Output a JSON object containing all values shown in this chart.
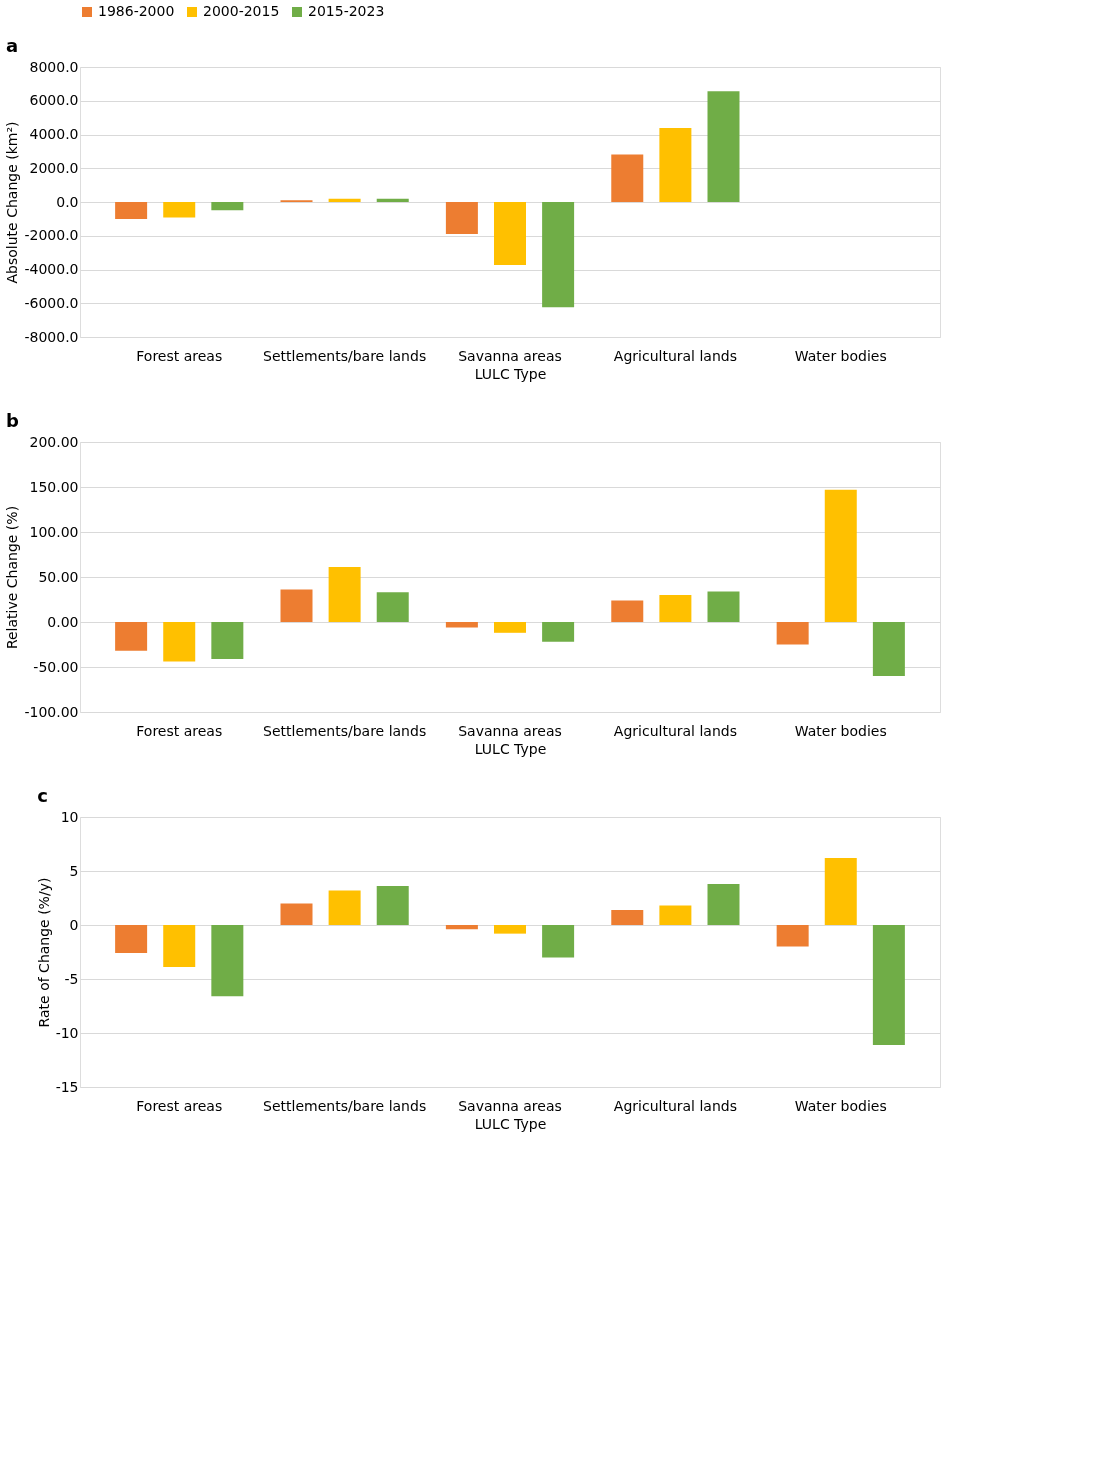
{
  "chart_data": [
    {
      "type": "bar",
      "title": "a",
      "xlabel": "LULC Type",
      "ylabel": "Absolute Change (km²)",
      "categories": [
        "Forest areas",
        "Settlements/bare lands",
        "Savanna areas",
        "Agricultural lands",
        "Water bodies"
      ],
      "series": [
        {
          "name": "1986-2000",
          "color": "#ed7d31",
          "values": [
            -1000,
            100,
            -1900,
            2820,
            0
          ]
        },
        {
          "name": "2000-2015",
          "color": "#ffc000",
          "values": [
            -920,
            200,
            -3740,
            4390,
            0
          ]
        },
        {
          "name": "2015-2023",
          "color": "#70ad47",
          "values": [
            -490,
            200,
            -6230,
            6560,
            0
          ]
        }
      ],
      "ylim": [
        -8000,
        8000
      ],
      "yticks": [
        {
          "value": -8000,
          "label": "-8000.0"
        },
        {
          "value": -6000,
          "label": "-6000.0"
        },
        {
          "value": -4000,
          "label": "-4000.0"
        },
        {
          "value": -2000,
          "label": "-2000.0"
        },
        {
          "value": 0,
          "label": "0.0"
        },
        {
          "value": 2000,
          "label": "2000.0"
        },
        {
          "value": 4000,
          "label": "4000.0"
        },
        {
          "value": 6000,
          "label": "6000.0"
        },
        {
          "value": 8000,
          "label": "8000.0"
        }
      ],
      "grid": "y",
      "legend": "top"
    },
    {
      "type": "bar",
      "title": "b",
      "xlabel": "LULC Type",
      "ylabel": "Relative Change (%)",
      "categories": [
        "Forest areas",
        "Settlements/bare lands",
        "Savanna areas",
        "Agricultural lands",
        "Water bodies"
      ],
      "series": [
        {
          "name": "1986-2000",
          "color": "#ed7d31",
          "values": [
            -32,
            36,
            -6,
            24,
            -25
          ]
        },
        {
          "name": "2000-2015",
          "color": "#ffc000",
          "values": [
            -44,
            61,
            -12,
            30,
            147
          ]
        },
        {
          "name": "2015-2023",
          "color": "#70ad47",
          "values": [
            -41,
            33,
            -22,
            34,
            -60
          ]
        }
      ],
      "ylim": [
        -100,
        200
      ],
      "yticks": [
        {
          "value": -100,
          "label": "-100.00"
        },
        {
          "value": -50,
          "label": "-50.00"
        },
        {
          "value": 0,
          "label": "0.00"
        },
        {
          "value": 50,
          "label": "50.00"
        },
        {
          "value": 100,
          "label": "100.00"
        },
        {
          "value": 150,
          "label": "150.00"
        },
        {
          "value": 200,
          "label": "200.00"
        }
      ],
      "grid": "y",
      "legend": "top"
    },
    {
      "type": "bar",
      "title": "c",
      "xlabel": "LULC Type",
      "ylabel": "Rate of Change (%/y)",
      "categories": [
        "Forest areas",
        "Settlements/bare lands",
        "Savanna areas",
        "Agricultural lands",
        "Water bodies"
      ],
      "series": [
        {
          "name": "1986-2000",
          "color": "#ed7d31",
          "values": [
            -2.6,
            2.0,
            -0.4,
            1.4,
            -2.0
          ]
        },
        {
          "name": "2000-2015",
          "color": "#ffc000",
          "values": [
            -3.9,
            3.2,
            -0.8,
            1.8,
            6.2
          ]
        },
        {
          "name": "2015-2023",
          "color": "#70ad47",
          "values": [
            -6.6,
            3.6,
            -3.0,
            3.8,
            -11.1
          ]
        }
      ],
      "ylim": [
        -15,
        10
      ],
      "yticks": [
        -15,
        -10,
        -5,
        0,
        5,
        10
      ],
      "grid": "y",
      "legend": "top"
    }
  ]
}
